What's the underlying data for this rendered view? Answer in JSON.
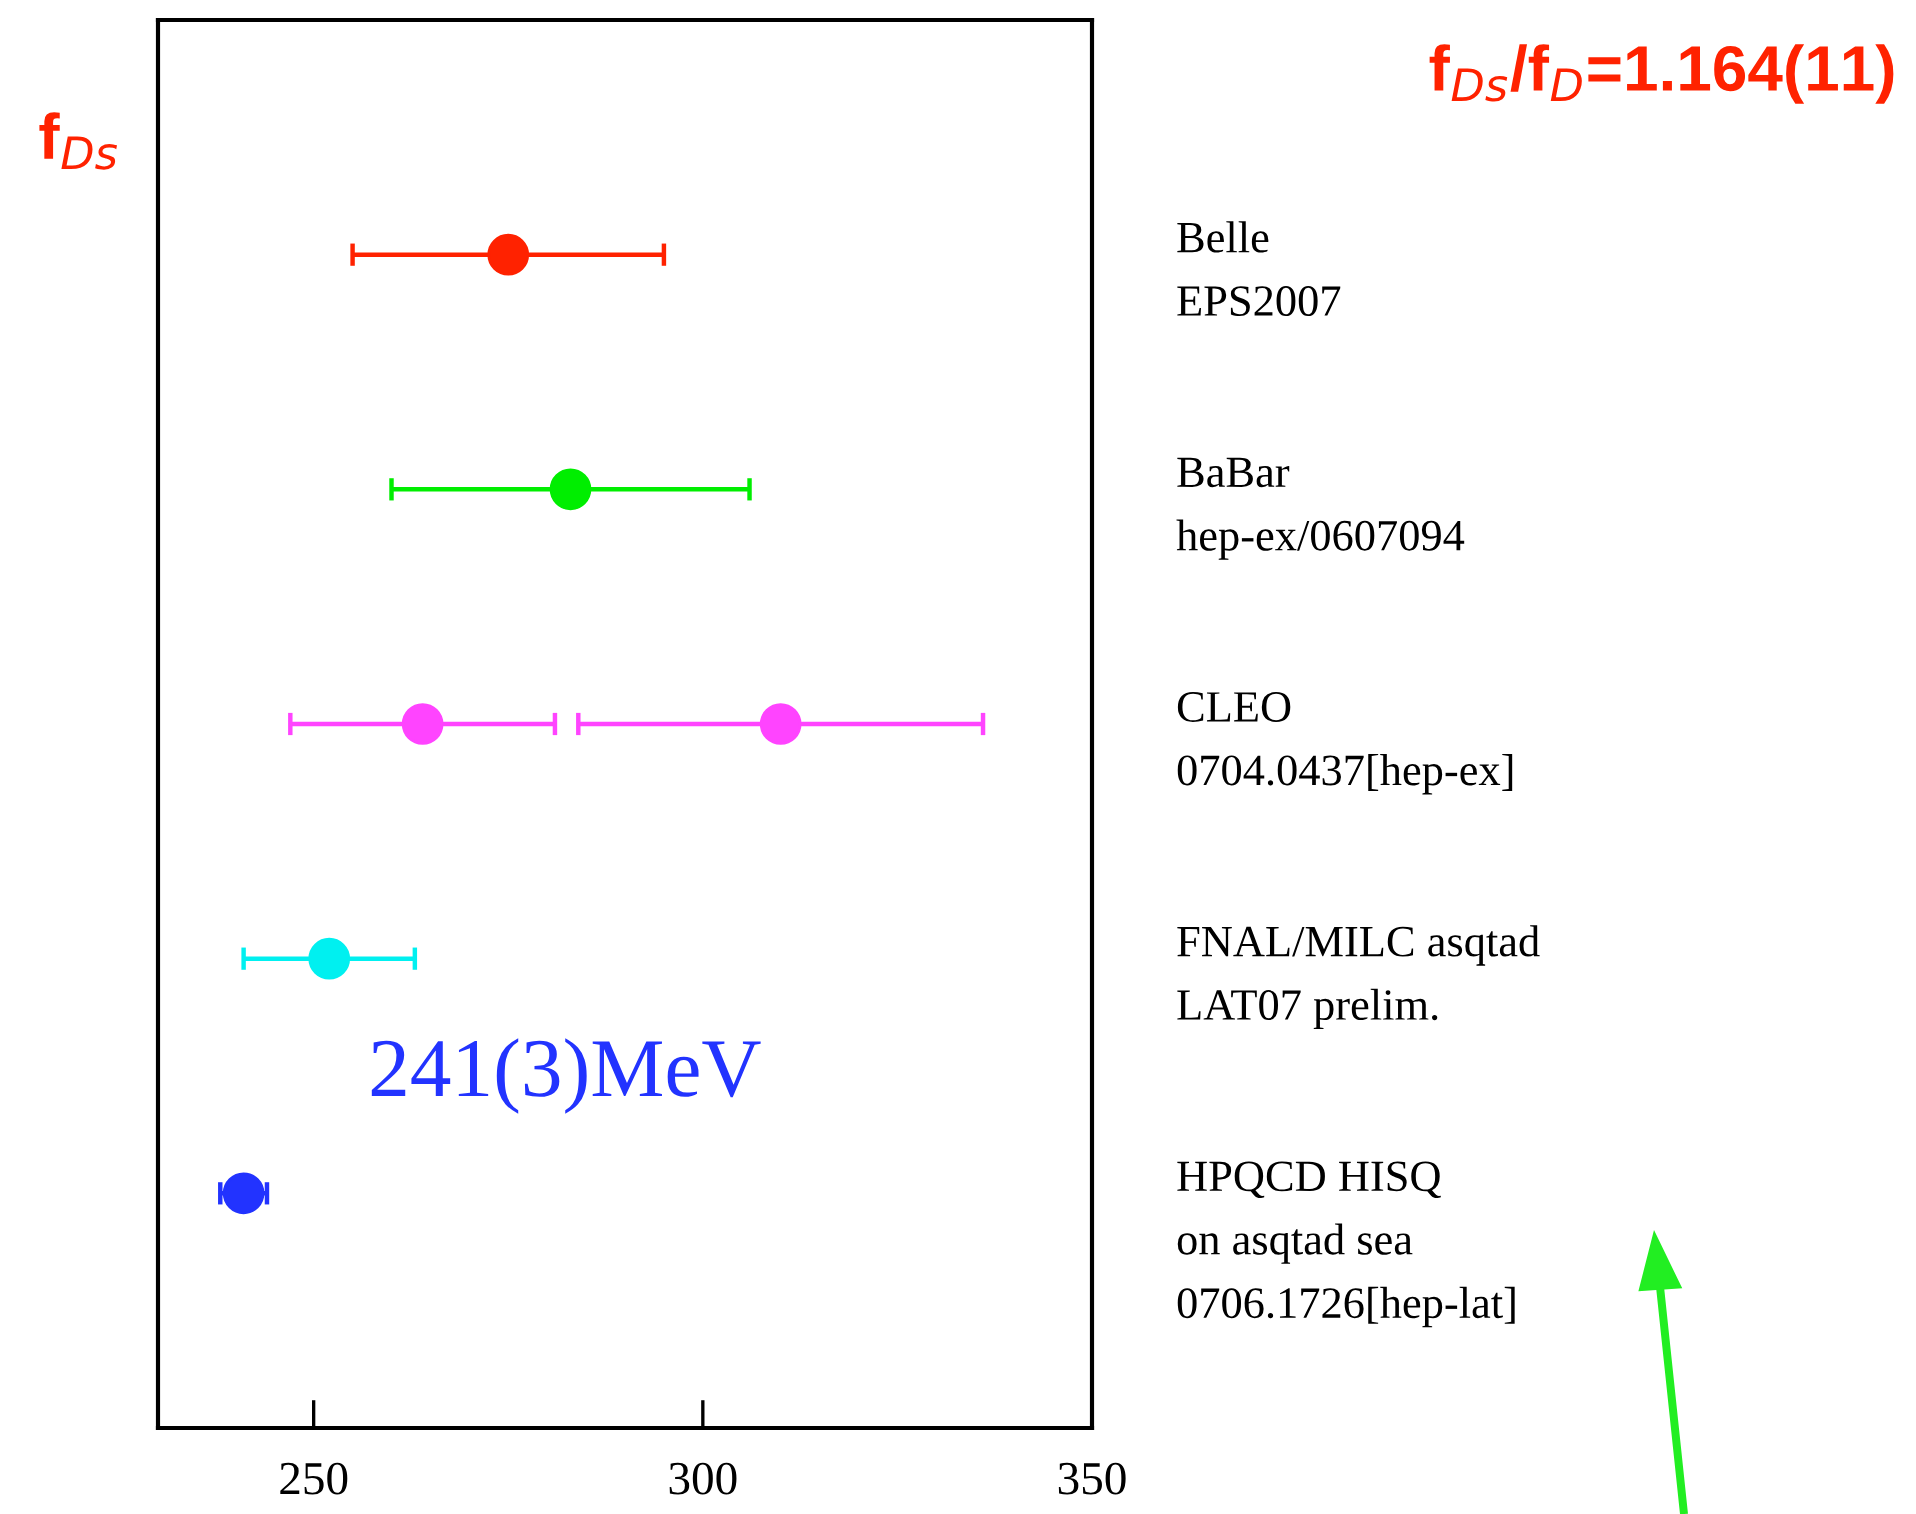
{
  "chart_data": {
    "type": "scatter",
    "orientation": "horizontal",
    "title": "f$_{Ds}$/f$_{D}$=1.164(11)",
    "ylabel": "f$_{Ds}$",
    "categories": [
      "Belle\nEPS2007",
      "BaBar\nhep-ex/0607094",
      "CLEO\n0704.0437[hep-ex]",
      "FNAL/MILC asqtad\nLAT07 prelim.",
      "HPQCD HISQ\non asqtad sea\n0706.1726[hep-lat]"
    ],
    "series": [
      {
        "colors": [
          "#ff2200",
          "#00ee00",
          "#ff44ff",
          "#00f0f0",
          "#2233ff"
        ],
        "values": [
          275,
          283,
          264,
          252,
          241
        ],
        "errors": [
          20,
          23,
          17,
          11,
          3
        ]
      },
      {
        "color": "#ff44ff",
        "values": [
          null,
          null,
          310,
          null,
          null
        ],
        "errors": [
          null,
          null,
          26,
          null,
          null
        ]
      }
    ],
    "xlim": [
      230,
      350
    ],
    "xticks": [
      250,
      300,
      350
    ],
    "annotations": [
      "241(3)MeV"
    ],
    "marker": "circle",
    "grid": false,
    "legend": false
  }
}
